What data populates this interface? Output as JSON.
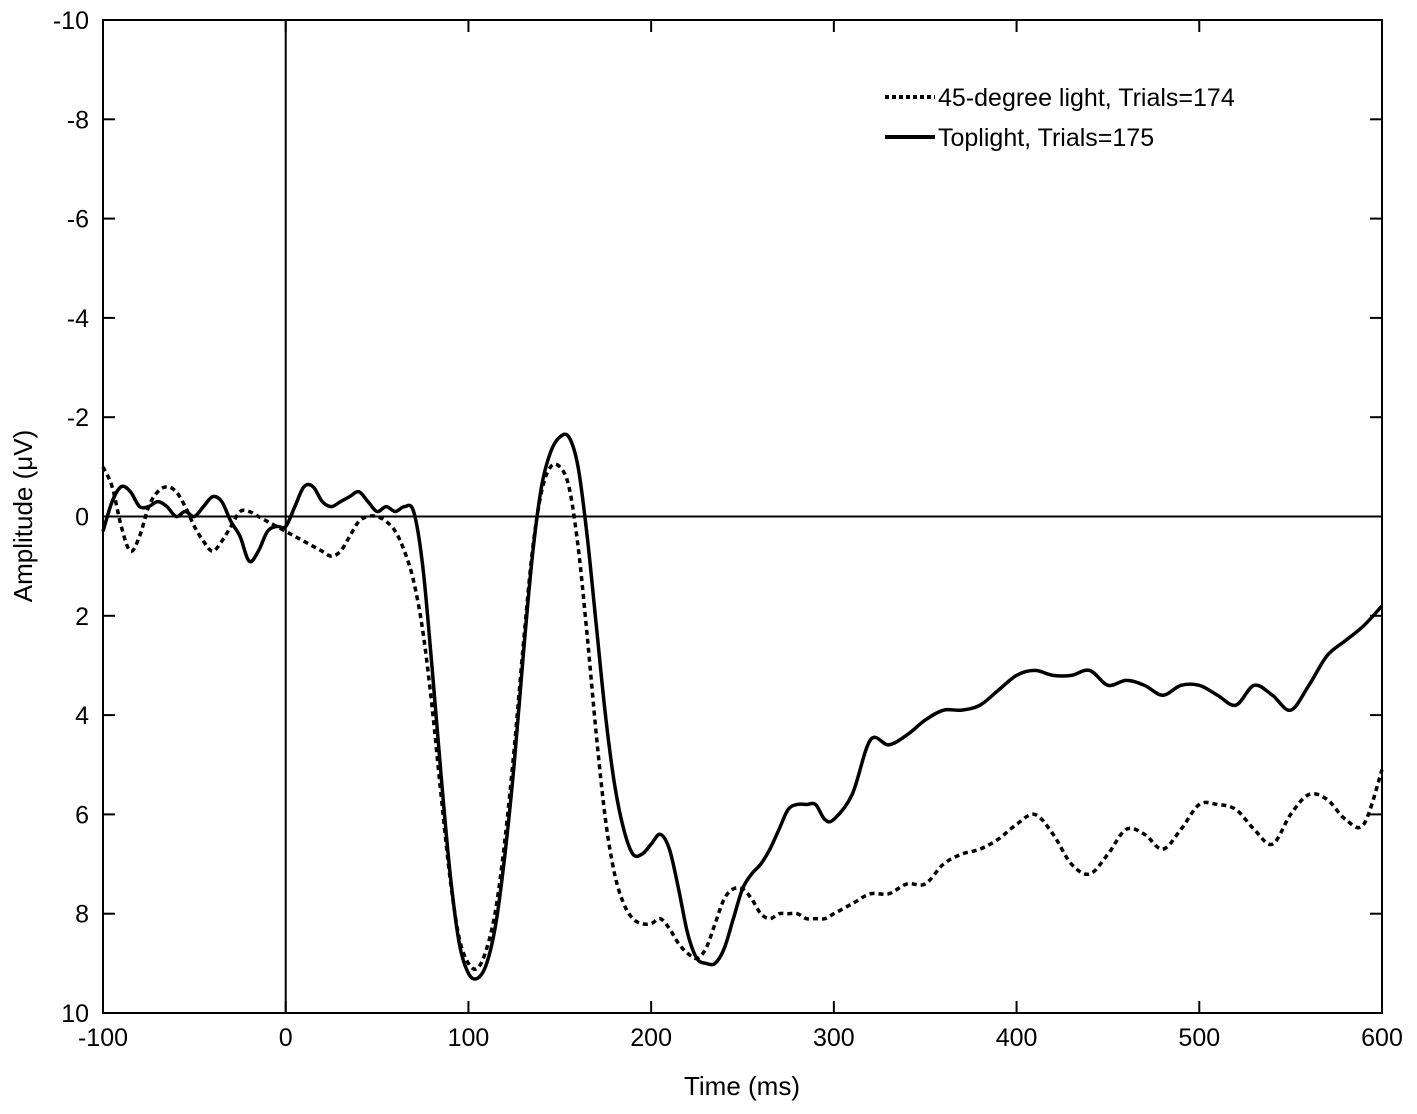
{
  "chart_data": {
    "type": "line",
    "title": "",
    "xlabel": "Time (ms)",
    "ylabel": "Amplitude (μV)",
    "xlim": [
      -100,
      600
    ],
    "ylim": [
      -10,
      10
    ],
    "y_inverted": true,
    "x_ticks": [
      -100,
      0,
      100,
      200,
      300,
      400,
      500,
      600
    ],
    "y_ticks": [
      -10,
      -8,
      -6,
      -4,
      -2,
      0,
      2,
      4,
      6,
      8,
      10
    ],
    "grid": false,
    "zero_lines": true,
    "legend_position": "top-right",
    "series": [
      {
        "name": "45-degree light, Trials=174",
        "line_style": "dotted",
        "color": "#000000",
        "x": [
          -100,
          -95,
          -90,
          -85,
          -80,
          -75,
          -70,
          -65,
          -60,
          -55,
          -50,
          -45,
          -40,
          -35,
          -30,
          -25,
          -20,
          -15,
          -10,
          -5,
          0,
          5,
          10,
          15,
          20,
          25,
          30,
          35,
          40,
          45,
          50,
          55,
          60,
          65,
          70,
          75,
          80,
          85,
          90,
          95,
          100,
          105,
          110,
          115,
          120,
          125,
          130,
          135,
          140,
          145,
          150,
          155,
          160,
          165,
          170,
          175,
          180,
          185,
          190,
          195,
          200,
          205,
          210,
          215,
          220,
          225,
          230,
          235,
          240,
          245,
          250,
          255,
          260,
          265,
          270,
          275,
          280,
          285,
          290,
          295,
          300,
          310,
          320,
          330,
          340,
          350,
          360,
          370,
          380,
          390,
          400,
          410,
          420,
          430,
          440,
          450,
          460,
          470,
          480,
          490,
          500,
          510,
          520,
          530,
          540,
          550,
          560,
          570,
          580,
          590,
          600
        ],
        "y": [
          -1.0,
          -0.6,
          0.2,
          0.7,
          0.4,
          -0.2,
          -0.5,
          -0.6,
          -0.5,
          -0.2,
          0.2,
          0.5,
          0.7,
          0.5,
          0.2,
          -0.1,
          -0.1,
          0.0,
          0.1,
          0.2,
          0.3,
          0.4,
          0.5,
          0.6,
          0.7,
          0.8,
          0.7,
          0.4,
          0.1,
          0.0,
          0.0,
          0.1,
          0.3,
          0.7,
          1.3,
          2.3,
          3.8,
          5.6,
          7.3,
          8.5,
          9.0,
          9.1,
          8.7,
          7.9,
          6.5,
          4.7,
          2.6,
          0.7,
          -0.5,
          -1.0,
          -1.0,
          -0.6,
          0.6,
          2.4,
          4.4,
          6.1,
          7.2,
          7.8,
          8.1,
          8.2,
          8.2,
          8.1,
          8.3,
          8.6,
          8.8,
          8.9,
          8.7,
          8.2,
          7.7,
          7.5,
          7.5,
          7.7,
          8.0,
          8.1,
          8.0,
          8.0,
          8.0,
          8.1,
          8.1,
          8.1,
          8.0,
          7.8,
          7.6,
          7.6,
          7.4,
          7.4,
          7.0,
          6.8,
          6.7,
          6.5,
          6.2,
          6.0,
          6.4,
          7.0,
          7.2,
          6.8,
          6.3,
          6.4,
          6.7,
          6.3,
          5.8,
          5.8,
          5.9,
          6.3,
          6.6,
          6.0,
          5.6,
          5.7,
          6.1,
          6.2,
          5.1
        ]
      },
      {
        "name": "Toplight, Trials=175",
        "line_style": "solid",
        "color": "#000000",
        "x": [
          -100,
          -95,
          -90,
          -85,
          -80,
          -75,
          -70,
          -65,
          -60,
          -55,
          -50,
          -45,
          -40,
          -35,
          -30,
          -25,
          -20,
          -15,
          -10,
          -5,
          0,
          5,
          10,
          15,
          20,
          25,
          30,
          35,
          40,
          45,
          50,
          55,
          60,
          65,
          70,
          75,
          80,
          85,
          90,
          95,
          100,
          105,
          110,
          115,
          120,
          125,
          130,
          135,
          140,
          145,
          150,
          155,
          160,
          165,
          170,
          175,
          180,
          185,
          190,
          195,
          200,
          205,
          210,
          215,
          220,
          225,
          230,
          235,
          240,
          245,
          250,
          255,
          260,
          265,
          270,
          275,
          280,
          285,
          290,
          295,
          300,
          310,
          320,
          330,
          340,
          350,
          360,
          370,
          380,
          390,
          400,
          410,
          420,
          430,
          440,
          450,
          460,
          470,
          480,
          490,
          500,
          510,
          520,
          530,
          540,
          550,
          560,
          570,
          580,
          590,
          600
        ],
        "y": [
          0.3,
          -0.3,
          -0.6,
          -0.5,
          -0.2,
          -0.2,
          -0.3,
          -0.2,
          0.0,
          -0.1,
          0.0,
          -0.2,
          -0.4,
          -0.3,
          0.1,
          0.4,
          0.9,
          0.7,
          0.3,
          0.2,
          0.2,
          -0.2,
          -0.6,
          -0.6,
          -0.3,
          -0.2,
          -0.3,
          -0.4,
          -0.5,
          -0.3,
          -0.1,
          -0.2,
          -0.1,
          -0.2,
          -0.1,
          1.0,
          3.0,
          5.2,
          7.2,
          8.6,
          9.2,
          9.3,
          9.0,
          8.2,
          6.8,
          5.0,
          2.8,
          0.8,
          -0.6,
          -1.3,
          -1.6,
          -1.6,
          -1.0,
          0.4,
          2.2,
          4.0,
          5.4,
          6.3,
          6.8,
          6.8,
          6.6,
          6.4,
          6.7,
          7.5,
          8.4,
          8.9,
          9.0,
          9.0,
          8.7,
          8.1,
          7.5,
          7.2,
          7.0,
          6.7,
          6.3,
          5.9,
          5.8,
          5.8,
          5.8,
          6.1,
          6.1,
          5.6,
          4.5,
          4.6,
          4.4,
          4.1,
          3.9,
          3.9,
          3.8,
          3.5,
          3.2,
          3.1,
          3.2,
          3.2,
          3.1,
          3.4,
          3.3,
          3.4,
          3.6,
          3.4,
          3.4,
          3.6,
          3.8,
          3.4,
          3.6,
          3.9,
          3.4,
          2.8,
          2.5,
          2.2,
          1.8
        ]
      }
    ]
  }
}
